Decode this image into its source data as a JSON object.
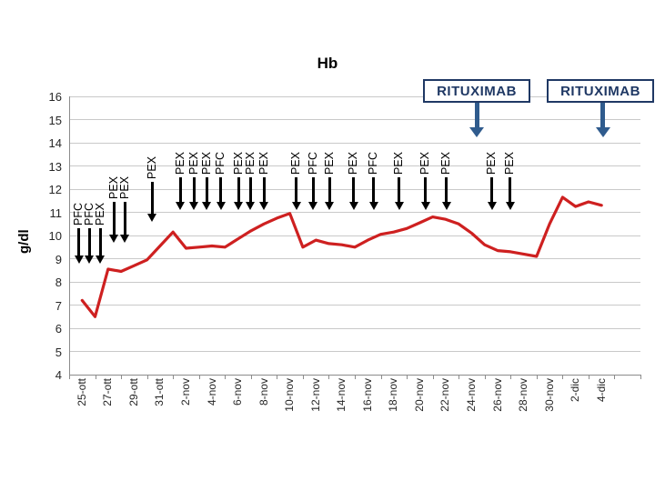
{
  "chart_data": {
    "type": "line",
    "title": "Hb",
    "ylabel": "g/dl",
    "ylim": [
      4,
      16
    ],
    "y_tick_step": 1,
    "grid": "horizontal",
    "legend": "none",
    "x_tick_labels": [
      "25-ott",
      "27-ott",
      "29-ott",
      "31-ott",
      "2-nov",
      "4-nov",
      "6-nov",
      "8-nov",
      "10-nov",
      "12-nov",
      "14-nov",
      "16-nov",
      "18-nov",
      "20-nov",
      "22-nov",
      "24-nov",
      "26-nov",
      "28-nov",
      "30-nov",
      "2-dic",
      "4-dic"
    ],
    "x": [
      "25-ott",
      "26-ott",
      "27-ott",
      "28-ott",
      "29-ott",
      "30-ott",
      "31-ott",
      "1-nov",
      "2-nov",
      "3-nov",
      "4-nov",
      "5-nov",
      "6-nov",
      "7-nov",
      "8-nov",
      "9-nov",
      "10-nov",
      "11-nov",
      "12-nov",
      "13-nov",
      "14-nov",
      "15-nov",
      "16-nov",
      "17-nov",
      "18-nov",
      "19-nov",
      "20-nov",
      "21-nov",
      "22-nov",
      "23-nov",
      "24-nov",
      "25-nov",
      "26-nov",
      "27-nov",
      "28-nov",
      "29-nov",
      "30-nov",
      "1-dic",
      "2-dic",
      "3-dic",
      "4-dic"
    ],
    "series": [
      {
        "name": "Hb",
        "color": "#CE2020",
        "values": [
          7.2,
          6.5,
          8.55,
          8.45,
          8.7,
          8.95,
          9.55,
          10.15,
          9.45,
          9.5,
          9.55,
          9.5,
          9.85,
          10.2,
          10.5,
          10.75,
          10.95,
          9.5,
          9.8,
          9.65,
          9.6,
          9.5,
          9.8,
          10.05,
          10.15,
          10.3,
          10.55,
          10.8,
          10.7,
          10.5,
          10.1,
          9.6,
          9.35,
          9.3,
          9.2,
          9.1,
          10.5,
          11.65,
          11.25,
          11.45,
          11.3
        ]
      }
    ],
    "annotations": {
      "treatments": [
        {
          "label": "PFC",
          "day": -0.25,
          "tier": 1
        },
        {
          "label": "PFC",
          "day": 0.55,
          "tier": 1
        },
        {
          "label": "PEX",
          "day": 1.4,
          "tier": 1
        },
        {
          "label": "PEX",
          "day": 2.45,
          "tier": 2
        },
        {
          "label": "PEX",
          "day": 3.3,
          "tier": 2
        },
        {
          "label": "PEX",
          "day": 5.4,
          "tier": 3
        },
        {
          "label": "PEX",
          "day": 7.55,
          "tier": 4
        },
        {
          "label": "PEX",
          "day": 8.6,
          "tier": 4
        },
        {
          "label": "PEX",
          "day": 9.6,
          "tier": 4
        },
        {
          "label": "PFC",
          "day": 10.7,
          "tier": 4
        },
        {
          "label": "PEX",
          "day": 12.05,
          "tier": 4
        },
        {
          "label": "PEX",
          "day": 12.95,
          "tier": 4
        },
        {
          "label": "PEX",
          "day": 14.0,
          "tier": 4
        },
        {
          "label": "PEX",
          "day": 16.5,
          "tier": 4
        },
        {
          "label": "PFC",
          "day": 17.8,
          "tier": 4
        },
        {
          "label": "PEX",
          "day": 19.05,
          "tier": 4
        },
        {
          "label": "PEX",
          "day": 20.9,
          "tier": 4
        },
        {
          "label": "PFC",
          "day": 22.45,
          "tier": 4
        },
        {
          "label": "PEX",
          "day": 24.4,
          "tier": 4
        },
        {
          "label": "PEX",
          "day": 26.45,
          "tier": 4
        },
        {
          "label": "PEX",
          "day": 28.05,
          "tier": 4
        },
        {
          "label": "PEX",
          "day": 31.55,
          "tier": 4
        },
        {
          "label": "PEX",
          "day": 32.95,
          "tier": 4
        }
      ],
      "treatment_levels": {
        "1": {
          "top_gdl": 10.3,
          "tip_gdl": 8.8
        },
        "2": {
          "top_gdl": 11.45,
          "tip_gdl": 9.7
        },
        "3": {
          "top_gdl": 12.3,
          "tip_gdl": 10.6
        },
        "4": {
          "top_gdl": 12.5,
          "tip_gdl": 11.1
        }
      },
      "rituximab_boxes": [
        {
          "label": "RITUXIMAB",
          "arrow_day": 30.4
        },
        {
          "label": "RITUXIMAB",
          "arrow_day": 40.1
        }
      ]
    },
    "colors": {
      "line": "#CE2020",
      "treatment_arrow": "#000000",
      "rituximab_text": "#1F3864",
      "rituximab_arrow": "#2F5B8D",
      "grid": "#C9C9C9",
      "axis": "#8C8C8C"
    }
  }
}
